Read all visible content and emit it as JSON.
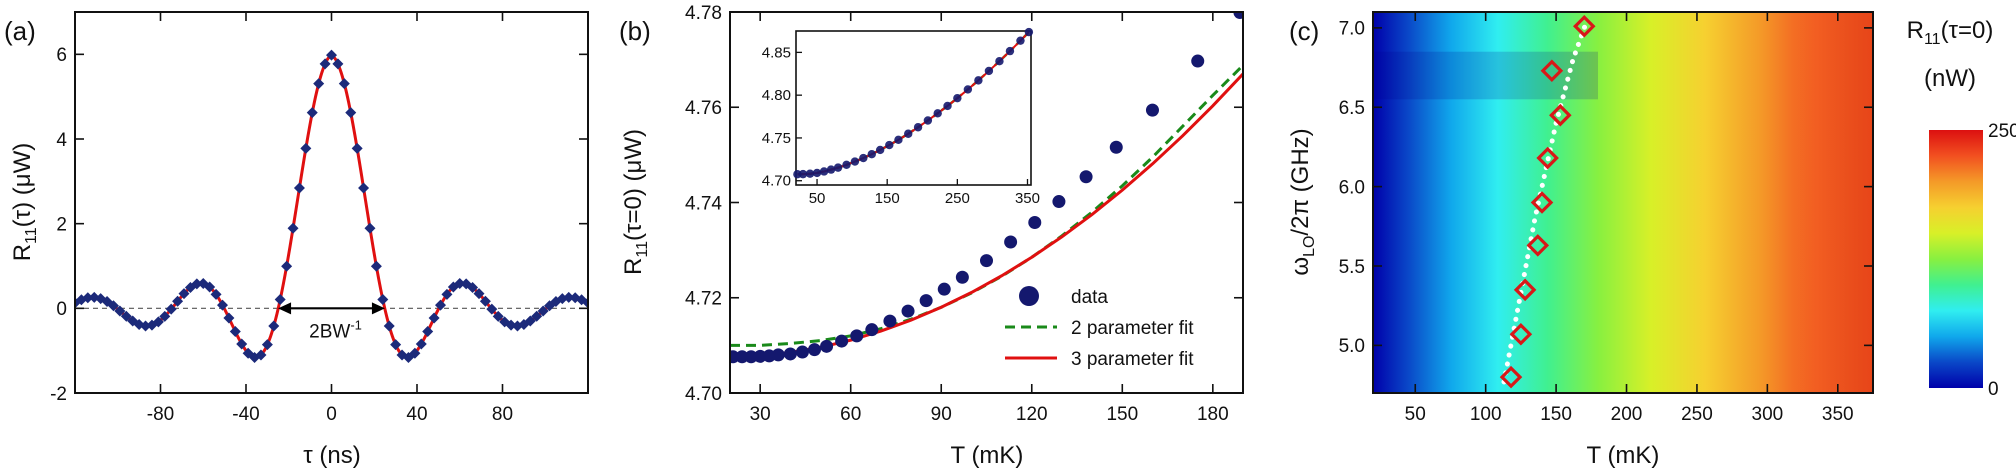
{
  "chart_data": [
    {
      "panel_label": "(a)",
      "type": "scatter",
      "xlabel": "τ (ns)",
      "ylabel": "R11(τ) (μW)",
      "ylabel_parts": {
        "main": "R",
        "sub": "11",
        "rest": "(τ) (μW)"
      },
      "xlim": [
        -120,
        120
      ],
      "ylim": [
        -2,
        7
      ],
      "xticks": [
        -80,
        -40,
        0,
        40,
        80
      ],
      "yticks": [
        -2,
        0,
        2,
        4,
        6
      ],
      "annotation": {
        "text": "2BW",
        "sup": "-1",
        "x_from": -25,
        "x_to": 25,
        "y": 0
      },
      "model": {
        "center_value": 6.0,
        "sinc_width_ns": 25,
        "envelope_tau_ns": 270,
        "offset": -0.02
      },
      "series": [
        {
          "role": "data",
          "marker": "diamond",
          "color": "#1c2a7a",
          "x_start": -120,
          "x_end": 120,
          "x_step": 3
        },
        {
          "role": "fit",
          "color": "#e01010"
        }
      ]
    },
    {
      "panel_label": "(b)",
      "type": "scatter",
      "xlabel": "T (mK)",
      "ylabel": "R11(τ=0) (μW)",
      "ylabel_parts": {
        "main": "R",
        "sub": "11",
        "rest": "(τ=0) (μW)"
      },
      "xlim": [
        20,
        190
      ],
      "ylim": [
        4.7,
        4.78
      ],
      "xticks": [
        30,
        60,
        90,
        120,
        150,
        180
      ],
      "yticks": [
        4.7,
        4.72,
        4.74,
        4.76,
        4.78
      ],
      "legend": {
        "position": "bottom-right",
        "entries": [
          "data",
          "2 parameter fit",
          "3 parameter fit"
        ]
      },
      "series": [
        {
          "name": "data",
          "marker": "circle",
          "color": "#14186e",
          "x": [
            21,
            24,
            27,
            30,
            33,
            36,
            40,
            44,
            48,
            52,
            57,
            62,
            67,
            73,
            79,
            85,
            91,
            97,
            105,
            113,
            121,
            129,
            138,
            148,
            160,
            175,
            189
          ],
          "y": [
            4.7076,
            4.7076,
            4.7076,
            4.7077,
            4.7078,
            4.708,
            4.7082,
            4.7086,
            4.7091,
            4.7098,
            4.7109,
            4.712,
            4.7133,
            4.7151,
            4.7172,
            4.7194,
            4.7218,
            4.7243,
            4.7278,
            4.7317,
            4.7358,
            4.7402,
            4.7454,
            4.7516,
            4.7594,
            4.7697,
            4.7799
          ]
        },
        {
          "name": "2 parameter fit",
          "style": "dashed",
          "color": "#1a8a1a",
          "x": [
            20,
            30,
            40,
            50,
            60,
            70,
            80,
            90,
            100,
            110,
            120,
            130,
            140,
            150,
            160,
            170,
            180,
            190
          ],
          "y": [
            4.71,
            4.71,
            4.7104,
            4.711,
            4.712,
            4.7135,
            4.7155,
            4.718,
            4.721,
            4.7245,
            4.7285,
            4.733,
            4.738,
            4.7435,
            4.7495,
            4.756,
            4.7625,
            4.7688
          ]
        },
        {
          "name": "3 parameter fit",
          "style": "solid",
          "color": "#e01010",
          "x": [
            20,
            30,
            40,
            50,
            60,
            70,
            80,
            90,
            100,
            110,
            120,
            130,
            140,
            150,
            160,
            170,
            180,
            190
          ],
          "y": [
            4.7075,
            4.7078,
            4.7085,
            4.7096,
            4.7111,
            4.713,
            4.7153,
            4.718,
            4.7211,
            4.7246,
            4.7285,
            4.7328,
            4.7375,
            4.7426,
            4.7481,
            4.754,
            4.7603,
            4.767
          ]
        }
      ],
      "inset": {
        "xlim": [
          20,
          355
        ],
        "ylim": [
          4.695,
          4.875
        ],
        "xticks": [
          50,
          150,
          250,
          350
        ],
        "yticks": [
          4.7,
          4.75,
          4.8,
          4.85
        ],
        "x": [
          22,
          30,
          40,
          50,
          60,
          70,
          80,
          92,
          104,
          116,
          128,
          140,
          153,
          166,
          180,
          194,
          208,
          222,
          236,
          250,
          265,
          280,
          295,
          310,
          325,
          340,
          352
        ],
        "y": [
          4.7076,
          4.7077,
          4.7082,
          4.7091,
          4.7108,
          4.713,
          4.7153,
          4.7186,
          4.7224,
          4.7265,
          4.731,
          4.736,
          4.7417,
          4.7478,
          4.7549,
          4.7625,
          4.7704,
          4.7788,
          4.7874,
          4.7965,
          4.8067,
          4.8173,
          4.8283,
          4.8397,
          4.8515,
          4.8637,
          4.8737
        ]
      }
    },
    {
      "panel_label": "(c)",
      "type": "heatmap",
      "xlabel": "T (mK)",
      "ylabel": "ωLO/2π (GHz)",
      "ylabel_parts": {
        "main": "ω",
        "sub": "LO",
        "rest": "/2π (GHz)"
      },
      "xlim": [
        20,
        375
      ],
      "ylim": [
        4.7,
        7.1
      ],
      "xticks": [
        50,
        100,
        150,
        200,
        250,
        300,
        350
      ],
      "yticks": [
        5.0,
        5.5,
        6.0,
        6.5,
        7.0
      ],
      "colorbar": {
        "title": "R11(τ=0)",
        "title_parts": {
          "main": "R",
          "sub": "11",
          "rest": "(τ=0)"
        },
        "unit": "(nW)",
        "min": 0,
        "max": 250,
        "ticks": [
          "250",
          "0"
        ]
      },
      "colormap": [
        "#0000aa",
        "#0a48c8",
        "#10a8ec",
        "#30eef0",
        "#40f090",
        "#88f040",
        "#d8f028",
        "#f6d030",
        "#f49a28",
        "#f25020",
        "#dc1010"
      ],
      "diamonds": {
        "color": "#d81818",
        "x": [
          118,
          125,
          128,
          137,
          140,
          144,
          153,
          147,
          170
        ],
        "y": [
          4.8,
          5.07,
          5.35,
          5.63,
          5.9,
          6.18,
          6.45,
          6.73,
          7.01
        ]
      },
      "dotted_line": {
        "color": "#ffffff",
        "x": [
          113,
          135,
          150,
          162,
          172
        ],
        "y": [
          4.77,
          5.8,
          6.4,
          6.8,
          7.05
        ]
      }
    }
  ]
}
